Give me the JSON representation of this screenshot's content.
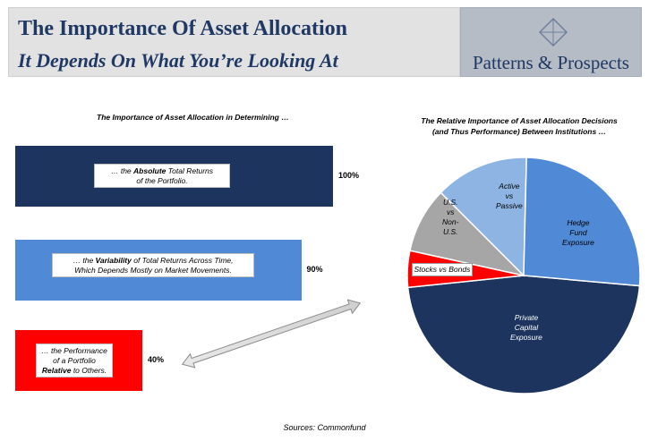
{
  "header": {
    "title": "The Importance Of Asset Allocation",
    "subtitle": "It Depends On What You’re Looking At",
    "logo_text": "Patterns & Prospects",
    "logo_icon": "diamond-icon"
  },
  "chart_data": [
    {
      "type": "bar",
      "orientation": "horizontal",
      "title": "The Importance of Asset Allocation in Determining …",
      "categories": [
        "… the Absolute Total Returns of the Portfolio.",
        "… the Variability of Total Returns Across Time, Which Depends Mostly on Market Movements.",
        "… the Performance of a Portfolio Relative to Others."
      ],
      "values": [
        100,
        90,
        40
      ],
      "value_labels": [
        "100%",
        "90%",
        "40%"
      ],
      "colors": [
        "#1c345e",
        "#5089d6",
        "#ff0000"
      ],
      "xlim": [
        0,
        100
      ],
      "grid": false,
      "label_parts": [
        [
          "… the ",
          "Absolute",
          " Total Returns",
          "of the Portfolio."
        ],
        [
          "… the ",
          "Variability",
          " of Total Returns Across Time,",
          "Which Depends Mostly on Market Movements."
        ],
        [
          "… the Performance",
          "of a Portfolio",
          "Relative",
          " to Others."
        ]
      ]
    },
    {
      "type": "pie",
      "title": "The Relative Importance of Asset Allocation Decisions (and Thus Performance) Between Institutions …",
      "title_lines": [
        "The Relative Importance of Asset Allocation Decisions",
        "(and Thus Performance) Between Institutions …"
      ],
      "slices": [
        {
          "label": "Private Capital Exposure",
          "value": 47,
          "color": "#1c345e",
          "lines": [
            "Private",
            "Capital",
            "Exposure"
          ]
        },
        {
          "label": "Stocks vs Bonds",
          "value": 5,
          "color": "#ff0000",
          "lines": [
            "Stocks vs Bonds"
          ]
        },
        {
          "label": "U.S. vs Non-U.S.",
          "value": 9,
          "color": "#a6a6a6",
          "lines": [
            "U.S.",
            "vs",
            "Non-",
            "U.S."
          ]
        },
        {
          "label": "Active vs Passive",
          "value": 13,
          "color": "#8db4e3",
          "lines": [
            "Active",
            "vs",
            "Passive"
          ]
        },
        {
          "label": "Hedge Fund Exposure",
          "value": 26,
          "color": "#5089d6",
          "lines": [
            "Hedge",
            "Fund",
            "Exposure"
          ]
        }
      ]
    }
  ],
  "sources": "Sources: Commonfund"
}
